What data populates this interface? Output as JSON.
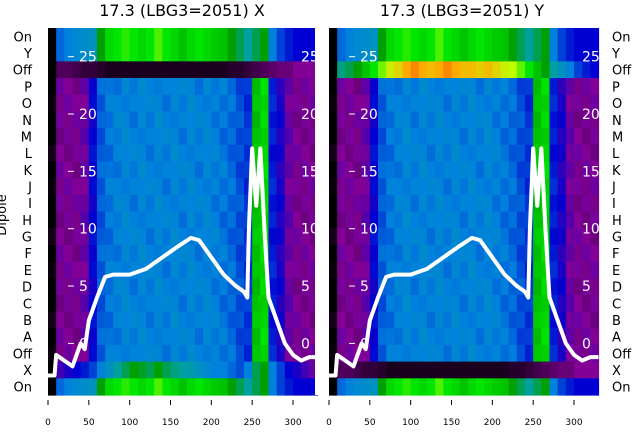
{
  "chart_data": {
    "type": "heatmap",
    "ylabel": "Dipole",
    "row_labels": [
      "On",
      "Y",
      "Off",
      "P",
      "O",
      "N",
      "M",
      "L",
      "K",
      "J",
      "I",
      "H",
      "G",
      "F",
      "E",
      "D",
      "C",
      "B",
      "A",
      "Off",
      "X",
      "On"
    ],
    "x_ticks": [
      0,
      50,
      100,
      150,
      200,
      250,
      300
    ],
    "xlim": [
      0,
      330
    ],
    "overlay_ticks": [
      0,
      5,
      10,
      15,
      20,
      25
    ],
    "overlay_ylim": [
      -4.5,
      27.5
    ],
    "x_bins": [
      0,
      10,
      20,
      30,
      40,
      50,
      60,
      70,
      80,
      90,
      100,
      110,
      120,
      130,
      140,
      150,
      160,
      170,
      180,
      190,
      200,
      210,
      220,
      230,
      240,
      250,
      260,
      270,
      280,
      290,
      300,
      310,
      320
    ],
    "profiles": {
      "main": [
        0,
        0.1,
        0.1,
        0.1,
        0.12,
        0.2,
        0.27,
        0.29,
        0.3,
        0.31,
        0.3,
        0.31,
        0.3,
        0.31,
        0.3,
        0.31,
        0.3,
        0.31,
        0.3,
        0.31,
        0.3,
        0.29,
        0.28,
        0.26,
        0.24,
        0.55,
        0.58,
        0.22,
        0.18,
        0.12,
        0.1,
        0.1,
        0.1
      ],
      "on": [
        0,
        0.28,
        0.3,
        0.32,
        0.33,
        0.35,
        0.5,
        0.58,
        0.6,
        0.62,
        0.6,
        0.58,
        0.6,
        0.64,
        0.6,
        0.58,
        0.55,
        0.58,
        0.6,
        0.58,
        0.56,
        0.55,
        0.5,
        0.45,
        0.4,
        0.45,
        0.5,
        0.3,
        0.25,
        0.22,
        0.2,
        0.2,
        0.2
      ],
      "dark": [
        0,
        0.06,
        0.06,
        0.05,
        0.04,
        0.04,
        0.03,
        0.02,
        0.02,
        0.02,
        0.02,
        0.02,
        0.02,
        0.02,
        0.02,
        0.02,
        0.02,
        0.02,
        0.02,
        0.02,
        0.02,
        0.02,
        0.03,
        0.03,
        0.04,
        0.05,
        0.06,
        0.07,
        0.08,
        0.08,
        0.1,
        0.1,
        0.1
      ],
      "hot": [
        0,
        0.42,
        0.45,
        0.5,
        0.55,
        0.6,
        0.66,
        0.72,
        0.75,
        0.8,
        0.82,
        0.8,
        0.78,
        0.8,
        0.82,
        0.8,
        0.78,
        0.78,
        0.76,
        0.78,
        0.75,
        0.72,
        0.7,
        0.65,
        0.6,
        0.55,
        0.5,
        0.4,
        0.35,
        0.3,
        0.25,
        0.22,
        0.2
      ],
      "xrow": [
        0,
        0.15,
        0.18,
        0.2,
        0.22,
        0.25,
        0.3,
        0.35,
        0.4,
        0.45,
        0.5,
        0.48,
        0.45,
        0.5,
        0.45,
        0.42,
        0.4,
        0.38,
        0.35,
        0.32,
        0.3,
        0.3,
        0.28,
        0.26,
        0.3,
        0.45,
        0.5,
        0.3,
        0.25,
        0.2,
        0.18,
        0.15,
        0.12
      ]
    },
    "panels": [
      {
        "title": "17.3 (LBG3=2051) X",
        "rows": [
          "on",
          "on",
          "dark",
          "main",
          "main",
          "main",
          "main",
          "main",
          "main",
          "main",
          "main",
          "main",
          "main",
          "main",
          "main",
          "main",
          "main",
          "main",
          "main",
          "main",
          "xrow",
          "on"
        ]
      },
      {
        "title": "17.3 (LBG3=2051) Y",
        "rows": [
          "on",
          "on",
          "hot",
          "main",
          "main",
          "main",
          "main",
          "main",
          "main",
          "main",
          "main",
          "main",
          "main",
          "main",
          "main",
          "main",
          "main",
          "main",
          "main",
          "main",
          "dark",
          "on"
        ]
      }
    ],
    "overlay_line": {
      "x": [
        0,
        8,
        10,
        20,
        30,
        40,
        45,
        50,
        55,
        60,
        70,
        80,
        100,
        120,
        140,
        160,
        175,
        185,
        200,
        215,
        230,
        240,
        244,
        246,
        250,
        255,
        260,
        265,
        270,
        280,
        290,
        300,
        310,
        320,
        330
      ],
      "y": [
        -2.8,
        -2.8,
        -1,
        -1.5,
        -2,
        0,
        -0.5,
        2,
        3,
        4,
        5.8,
        6,
        6,
        6.5,
        7.5,
        8.5,
        9.2,
        9,
        7.5,
        6,
        5,
        4.5,
        4,
        10,
        17,
        12,
        17,
        10,
        4,
        2,
        0,
        -1,
        -1.5,
        -1.2,
        -1.2
      ]
    }
  }
}
